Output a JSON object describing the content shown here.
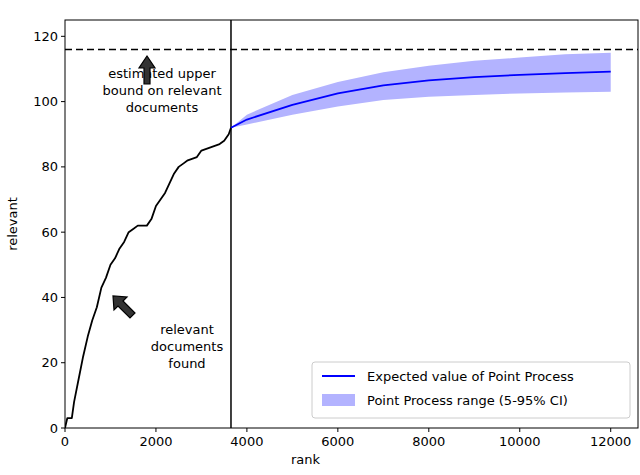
{
  "chart_data": {
    "type": "line",
    "xlabel": "rank",
    "ylabel": "relevant",
    "xlim": [
      0,
      12600
    ],
    "ylim": [
      0,
      125
    ],
    "xticks": [
      0,
      2000,
      4000,
      6000,
      8000,
      10000,
      12000
    ],
    "yticks": [
      0,
      20,
      40,
      60,
      80,
      100,
      120
    ],
    "legend": "lower right",
    "series": [
      {
        "type": "line",
        "color": "#000000",
        "line_style": "solid",
        "x": [
          0,
          50,
          150,
          200,
          300,
          400,
          500,
          600,
          700,
          800,
          900,
          1000,
          1100,
          1200,
          1300,
          1400,
          1500,
          1600,
          1800,
          1900,
          2000,
          2100,
          2200,
          2300,
          2400,
          2500,
          2600,
          2700,
          2900,
          3000,
          3200,
          3400,
          3500,
          3600,
          3650
        ],
        "values": [
          0,
          3,
          3,
          8,
          15,
          22,
          28,
          33,
          37,
          43,
          46,
          50,
          52,
          55,
          57,
          60,
          61,
          62,
          62,
          64,
          68,
          70,
          72,
          75,
          78,
          80,
          81,
          82,
          83,
          85,
          86,
          87,
          88,
          90,
          92
        ]
      },
      {
        "name": "Expected value of Point Process",
        "type": "line",
        "color": "#0000ff",
        "line_style": "solid",
        "x": [
          3650,
          4000,
          5000,
          6000,
          7000,
          8000,
          9000,
          10000,
          11000,
          12000
        ],
        "values": [
          92,
          94.5,
          99,
          102.5,
          105,
          106.5,
          107.5,
          108.2,
          108.7,
          109.2
        ]
      },
      {
        "name": "Point Process range (5-95% CI)",
        "type": "area",
        "color": "#b3b3ff",
        "x": [
          3650,
          4000,
          5000,
          6000,
          7000,
          8000,
          9000,
          10000,
          11000,
          12000
        ],
        "lower": [
          92,
          93,
          96,
          98.5,
          100.5,
          101.5,
          102,
          102.5,
          102.8,
          103
        ],
        "upper": [
          92,
          96,
          102,
          106,
          109,
          111,
          112.5,
          113.5,
          114.5,
          115
        ]
      }
    ],
    "reference_lines": [
      {
        "axis": "y",
        "value": 116,
        "line_style": "dashed",
        "color": "#000000"
      },
      {
        "axis": "x",
        "value": 3650,
        "line_style": "solid",
        "color": "#000000"
      }
    ],
    "annotations": [
      {
        "lines": [
          "estimated upper",
          "bound on relevant",
          "documents"
        ]
      },
      {
        "lines": [
          "relevant",
          "documents",
          "found"
        ]
      }
    ]
  }
}
